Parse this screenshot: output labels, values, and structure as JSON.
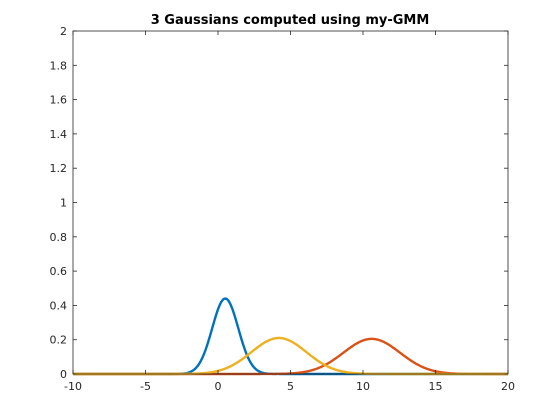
{
  "chart_data": {
    "type": "line",
    "title": "3 Gaussians computed using my-GMM",
    "xlabel": "",
    "ylabel": "",
    "xlim": [
      -10,
      20
    ],
    "ylim": [
      0,
      2
    ],
    "xticks": [
      -10,
      -5,
      0,
      5,
      10,
      15,
      20
    ],
    "yticks": [
      0,
      0.2,
      0.4,
      0.6,
      0.8,
      1,
      1.2,
      1.4,
      1.6,
      1.8,
      2
    ],
    "xtick_labels": [
      "-10",
      "-5",
      "0",
      "5",
      "10",
      "15",
      "20"
    ],
    "ytick_labels": [
      "0",
      "0.2",
      "0.4",
      "0.6",
      "0.8",
      "1",
      "1.2",
      "1.4",
      "1.6",
      "1.8",
      "2"
    ],
    "grid": false,
    "legend": "none",
    "series": [
      {
        "color": "#0072BD",
        "peak_x": 0.5,
        "peak_y": 0.44,
        "sigma": 0.9
      },
      {
        "color": "#D95319",
        "peak_x": 10.6,
        "peak_y": 0.205,
        "sigma": 1.95
      },
      {
        "color": "#EDB120",
        "peak_x": 4.2,
        "peak_y": 0.21,
        "sigma": 1.9
      }
    ]
  }
}
